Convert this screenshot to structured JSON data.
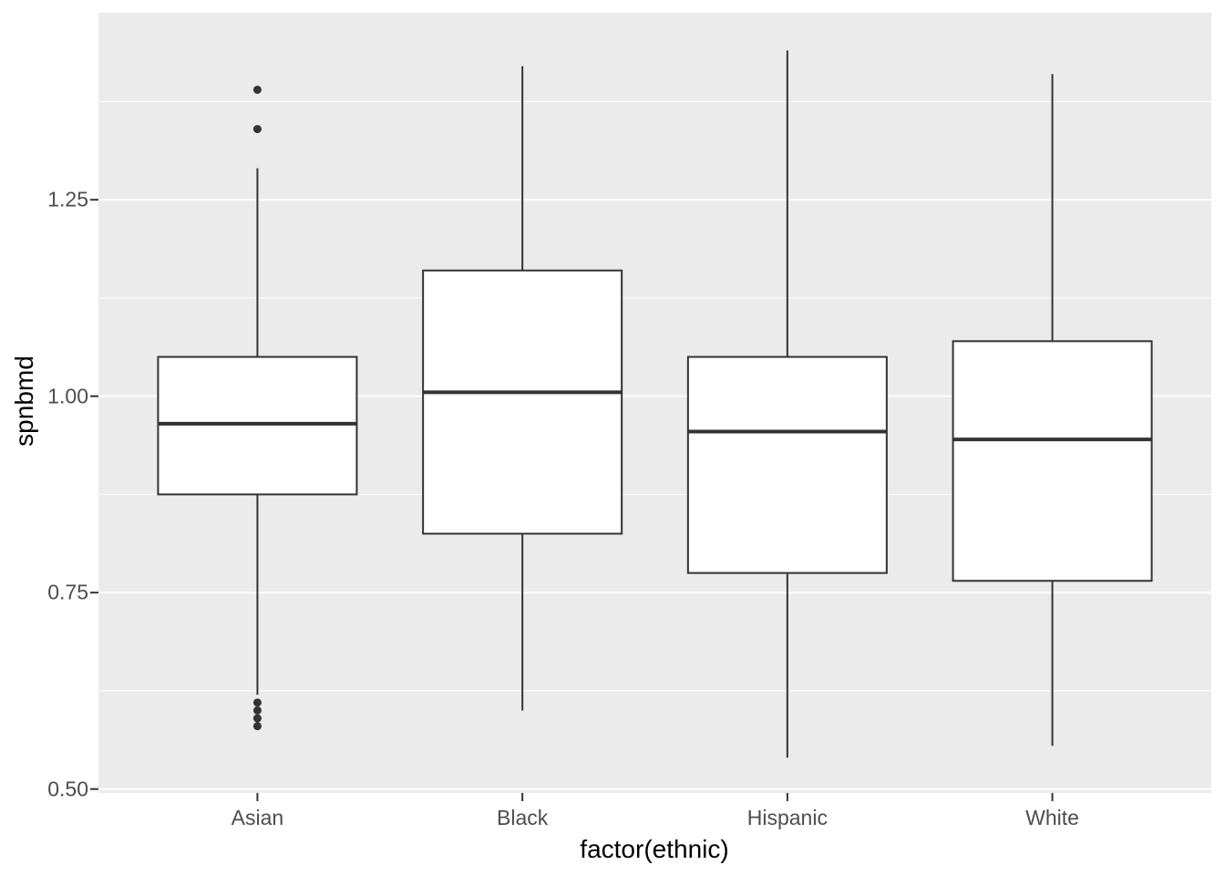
{
  "chart_data": {
    "type": "boxplot",
    "title": "",
    "xlabel": "factor(ethnic)",
    "ylabel": "spnbmd",
    "categories": [
      "Asian",
      "Black",
      "Hispanic",
      "White"
    ],
    "series": [
      {
        "category": "Asian",
        "whisker_low": 0.62,
        "q1": 0.875,
        "median": 0.965,
        "q3": 1.05,
        "whisker_high": 1.29,
        "outliers": [
          1.39,
          1.34,
          0.61,
          0.6,
          0.59,
          0.58
        ]
      },
      {
        "category": "Black",
        "whisker_low": 0.6,
        "q1": 0.825,
        "median": 1.005,
        "q3": 1.16,
        "whisker_high": 1.42,
        "outliers": []
      },
      {
        "category": "Hispanic",
        "whisker_low": 0.54,
        "q1": 0.775,
        "median": 0.955,
        "q3": 1.05,
        "whisker_high": 1.44,
        "outliers": []
      },
      {
        "category": "White",
        "whisker_low": 0.555,
        "q1": 0.765,
        "median": 0.945,
        "q3": 1.07,
        "whisker_high": 1.41,
        "outliers": []
      }
    ],
    "y_axis": {
      "ticks": [
        0.5,
        0.75,
        1.0,
        1.25
      ],
      "tick_labels": [
        "0.50",
        "0.75",
        "1.00",
        "1.25"
      ],
      "minor_ticks": [
        0.625,
        0.875,
        1.125,
        1.375
      ],
      "range": [
        0.495,
        1.488
      ]
    },
    "grid": true,
    "legend": false,
    "colors": {
      "panel_bg": "#EBEBEB",
      "grid": "#FFFFFF",
      "box_stroke": "#333333",
      "box_fill": "#FFFFFF",
      "tick_label": "#4D4D4D",
      "axis_title": "#000000"
    }
  }
}
